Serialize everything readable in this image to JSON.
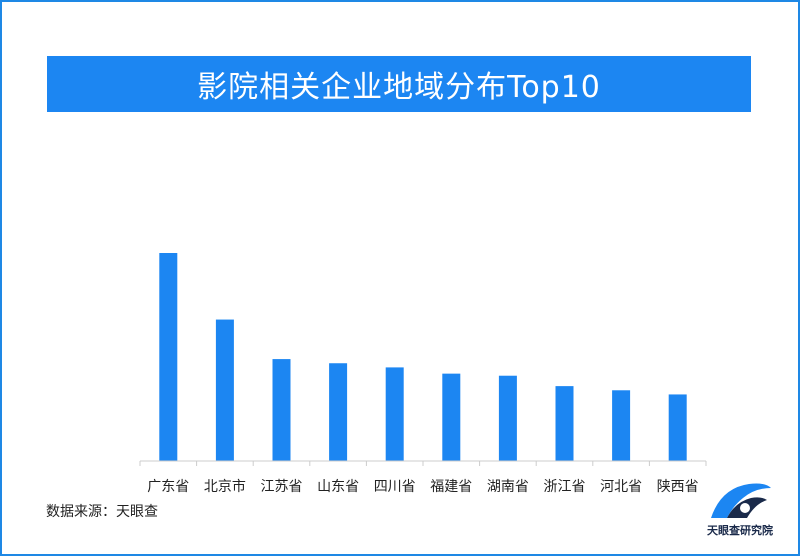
{
  "title": "影院相关企业地域分布Top10",
  "source": "数据来源：天眼查",
  "logo": {
    "text": "天眼查研究院",
    "icon": "tianyancha-logo-icon"
  },
  "colors": {
    "bar": "#1C86F2",
    "title_bg": "#1C86F2",
    "axis": "#cccccc",
    "border": "#1E88E5"
  },
  "chart_data": {
    "type": "bar",
    "categories": [
      "广东省",
      "北京市",
      "江苏省",
      "山东省",
      "四川省",
      "福建省",
      "湖南省",
      "浙江省",
      "河北省",
      "陕西省"
    ],
    "values": [
      100,
      68,
      49,
      47,
      45,
      42,
      41,
      36,
      34,
      32
    ],
    "title": "影院相关企业地域分布Top10",
    "xlabel": "",
    "ylabel": "",
    "ylim": [
      0,
      100
    ],
    "grid": false,
    "legend": "none"
  }
}
